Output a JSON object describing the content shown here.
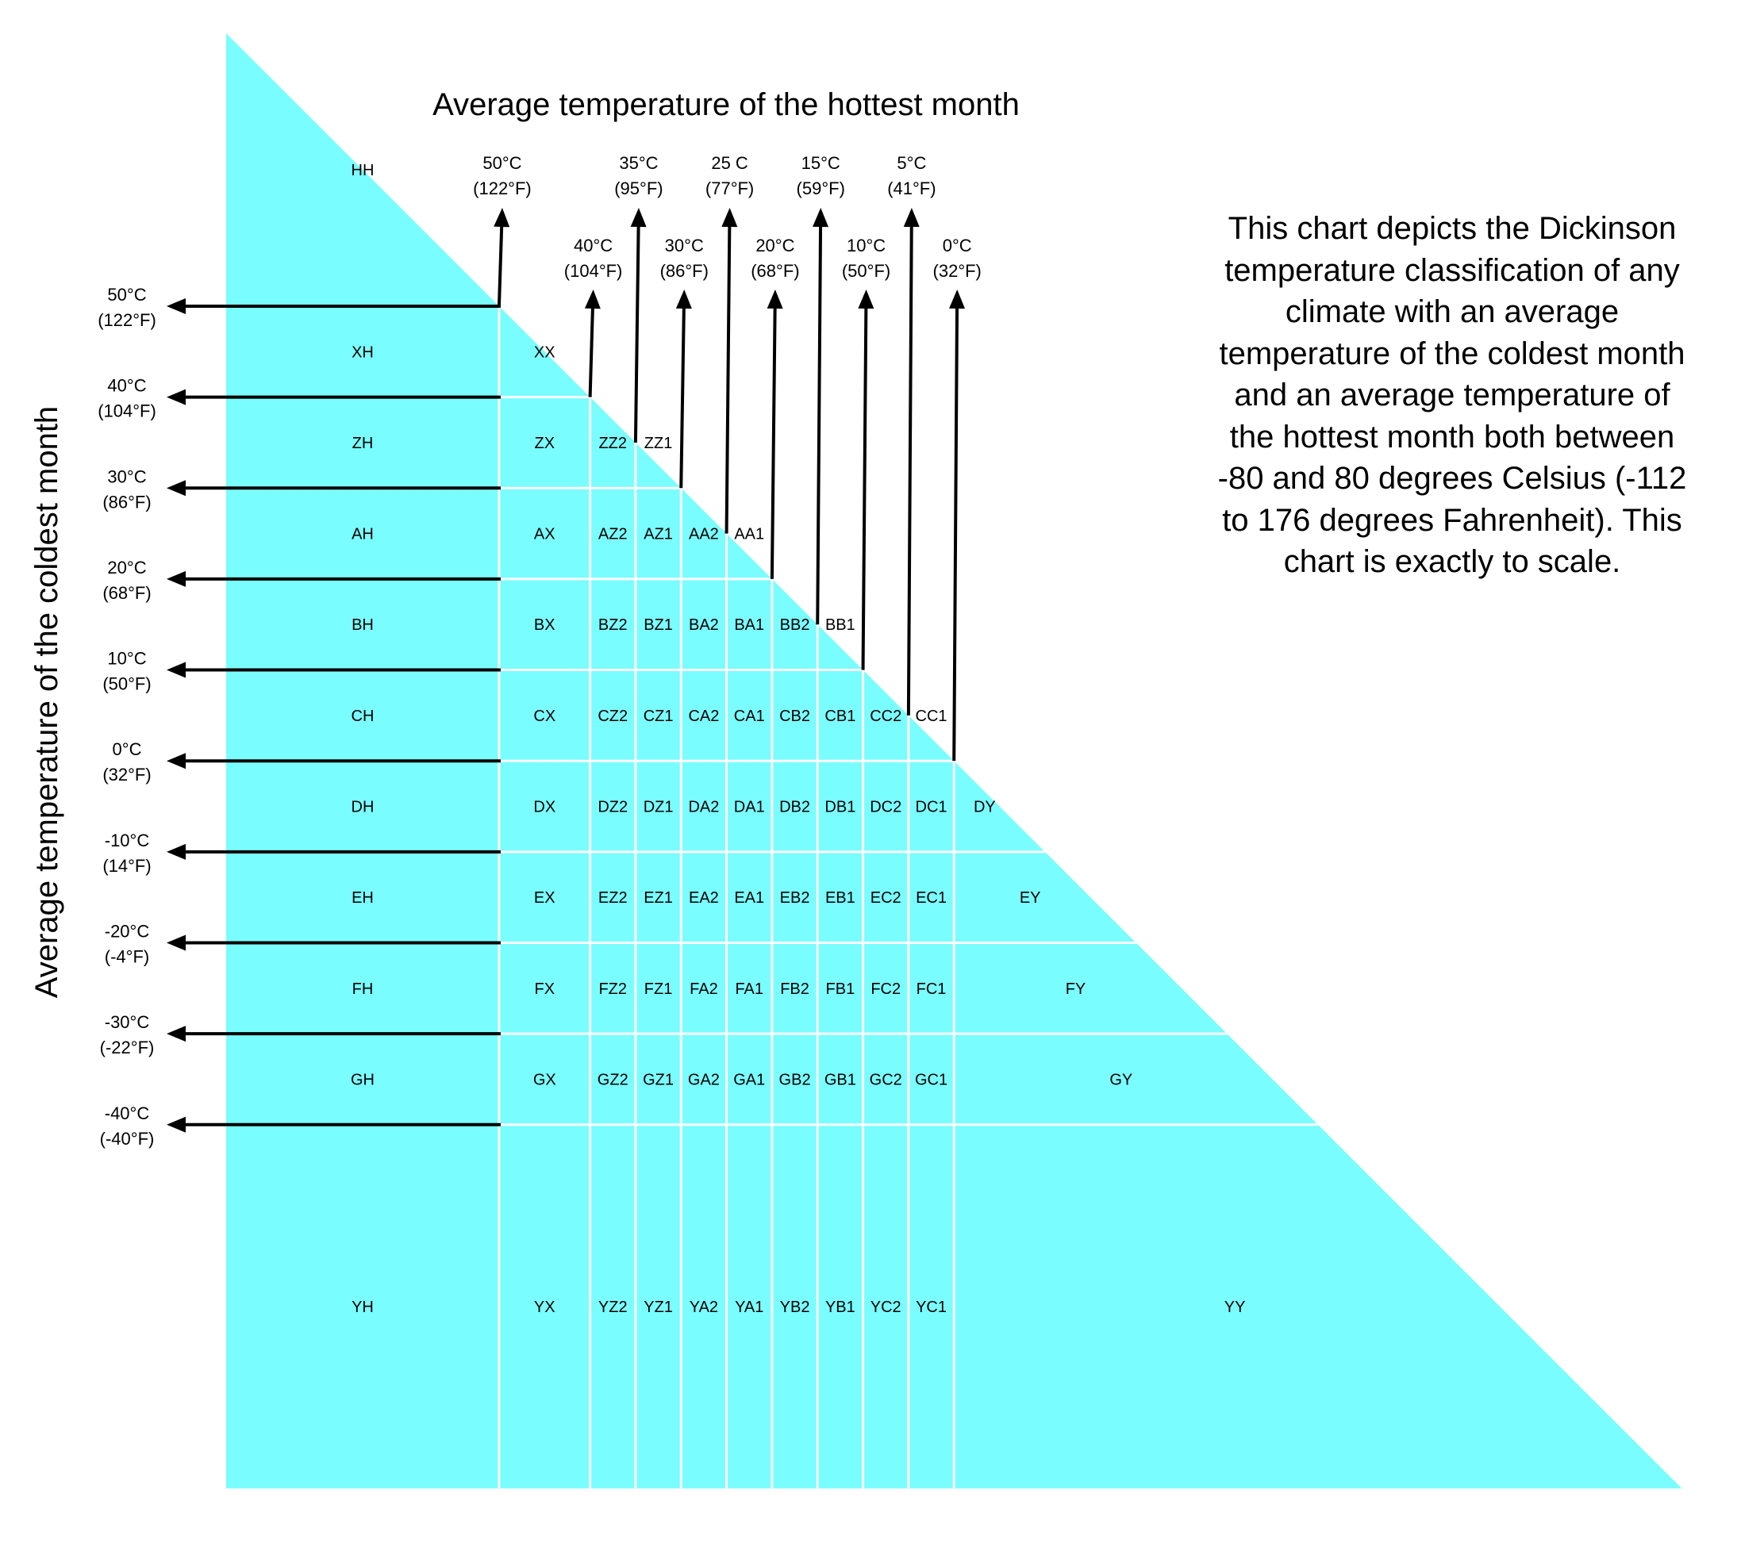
{
  "colors": {
    "fill": "#7AFDFE",
    "gridline": "#FFFFFF",
    "arrow": "#000000",
    "text": "#000000"
  },
  "titles": {
    "top": "Average temperature of the hottest month",
    "left": "Average temperature of the coldest month"
  },
  "description": "This chart depicts the Dickinson temperature classification of any climate with an average temperature of the coldest month and an average temperature of the hottest month both between -80 and 80 degrees Celsius (-112 to 176 degrees Fahrenheit). This chart is exactly to scale.",
  "chart_data": {
    "type": "table",
    "x_axis": "Average temperature of the hottest month",
    "y_axis": "Average temperature of the coldest month",
    "range_c": [
      -80,
      80
    ],
    "hottest_boundaries_c": [
      50,
      40,
      35,
      30,
      25,
      20,
      15,
      10,
      5,
      0
    ],
    "coldest_boundaries_c": [
      50,
      40,
      30,
      20,
      10,
      0,
      -10,
      -20,
      -30,
      -40
    ],
    "hottest_tick_labels": [
      {
        "value": 50,
        "c": "50°C",
        "f": "(122°F)"
      },
      {
        "value": 40,
        "c": "40°C",
        "f": "(104°F)"
      },
      {
        "value": 35,
        "c": "35°C",
        "f": "(95°F)"
      },
      {
        "value": 30,
        "c": "30°C",
        "f": "(86°F)"
      },
      {
        "value": 25,
        "c": "25 C",
        "f": "(77°F)"
      },
      {
        "value": 20,
        "c": "20°C",
        "f": "(68°F)"
      },
      {
        "value": 15,
        "c": "15°C",
        "f": "(59°F)"
      },
      {
        "value": 10,
        "c": "10°C",
        "f": "(50°F)"
      },
      {
        "value": 5,
        "c": "5°C",
        "f": "(41°F)"
      },
      {
        "value": 0,
        "c": "0°C",
        "f": "(32°F)"
      }
    ],
    "coldest_tick_labels": [
      {
        "value": 50,
        "c": "50°C",
        "f": "(122°F)"
      },
      {
        "value": 40,
        "c": "40°C",
        "f": "(104°F)"
      },
      {
        "value": 30,
        "c": "30°C",
        "f": "(86°F)"
      },
      {
        "value": 20,
        "c": "20°C",
        "f": "(68°F)"
      },
      {
        "value": 10,
        "c": "10°C",
        "f": "(50°F)"
      },
      {
        "value": 0,
        "c": "0°C",
        "f": "(32°F)"
      },
      {
        "value": -10,
        "c": "-10°C",
        "f": "(14°F)"
      },
      {
        "value": -20,
        "c": "-20°C",
        "f": "(-4°F)"
      },
      {
        "value": -30,
        "c": "-30°C",
        "f": "(-22°F)"
      },
      {
        "value": -40,
        "c": "-40°C",
        "f": "(-40°F)"
      }
    ],
    "row_codes": [
      "H",
      "X",
      "Z",
      "A",
      "B",
      "C",
      "D",
      "E",
      "F",
      "G",
      "Y"
    ],
    "column_codes": [
      "H",
      "X",
      "Z2",
      "Z1",
      "A2",
      "A1",
      "B2",
      "B1",
      "C2",
      "C1",
      "Y"
    ],
    "classes": [
      [
        "HH"
      ],
      [
        "XH",
        "XX"
      ],
      [
        "ZH",
        "ZX",
        "ZZ2",
        "ZZ1"
      ],
      [
        "AH",
        "AX",
        "AZ2",
        "AZ1",
        "AA2",
        "AA1"
      ],
      [
        "BH",
        "BX",
        "BZ2",
        "BZ1",
        "BA2",
        "BA1",
        "BB2",
        "BB1"
      ],
      [
        "CH",
        "CX",
        "CZ2",
        "CZ1",
        "CA2",
        "CA1",
        "CB2",
        "CB1",
        "CC2",
        "CC1"
      ],
      [
        "DH",
        "DX",
        "DZ2",
        "DZ1",
        "DA2",
        "DA1",
        "DB2",
        "DB1",
        "DC2",
        "DC1",
        "DY"
      ],
      [
        "EH",
        "EX",
        "EZ2",
        "EZ1",
        "EA2",
        "EA1",
        "EB2",
        "EB1",
        "EC2",
        "EC1",
        "EY"
      ],
      [
        "FH",
        "FX",
        "FZ2",
        "FZ1",
        "FA2",
        "FA1",
        "FB2",
        "FB1",
        "FC2",
        "FC1",
        "FY"
      ],
      [
        "GH",
        "GX",
        "GZ2",
        "GZ1",
        "GA2",
        "GA1",
        "GB2",
        "GB1",
        "GC2",
        "GC1",
        "GY"
      ],
      [
        "YH",
        "YX",
        "YZ2",
        "YZ1",
        "YA2",
        "YA1",
        "YB2",
        "YB1",
        "YC2",
        "YC1",
        "YY"
      ]
    ]
  }
}
